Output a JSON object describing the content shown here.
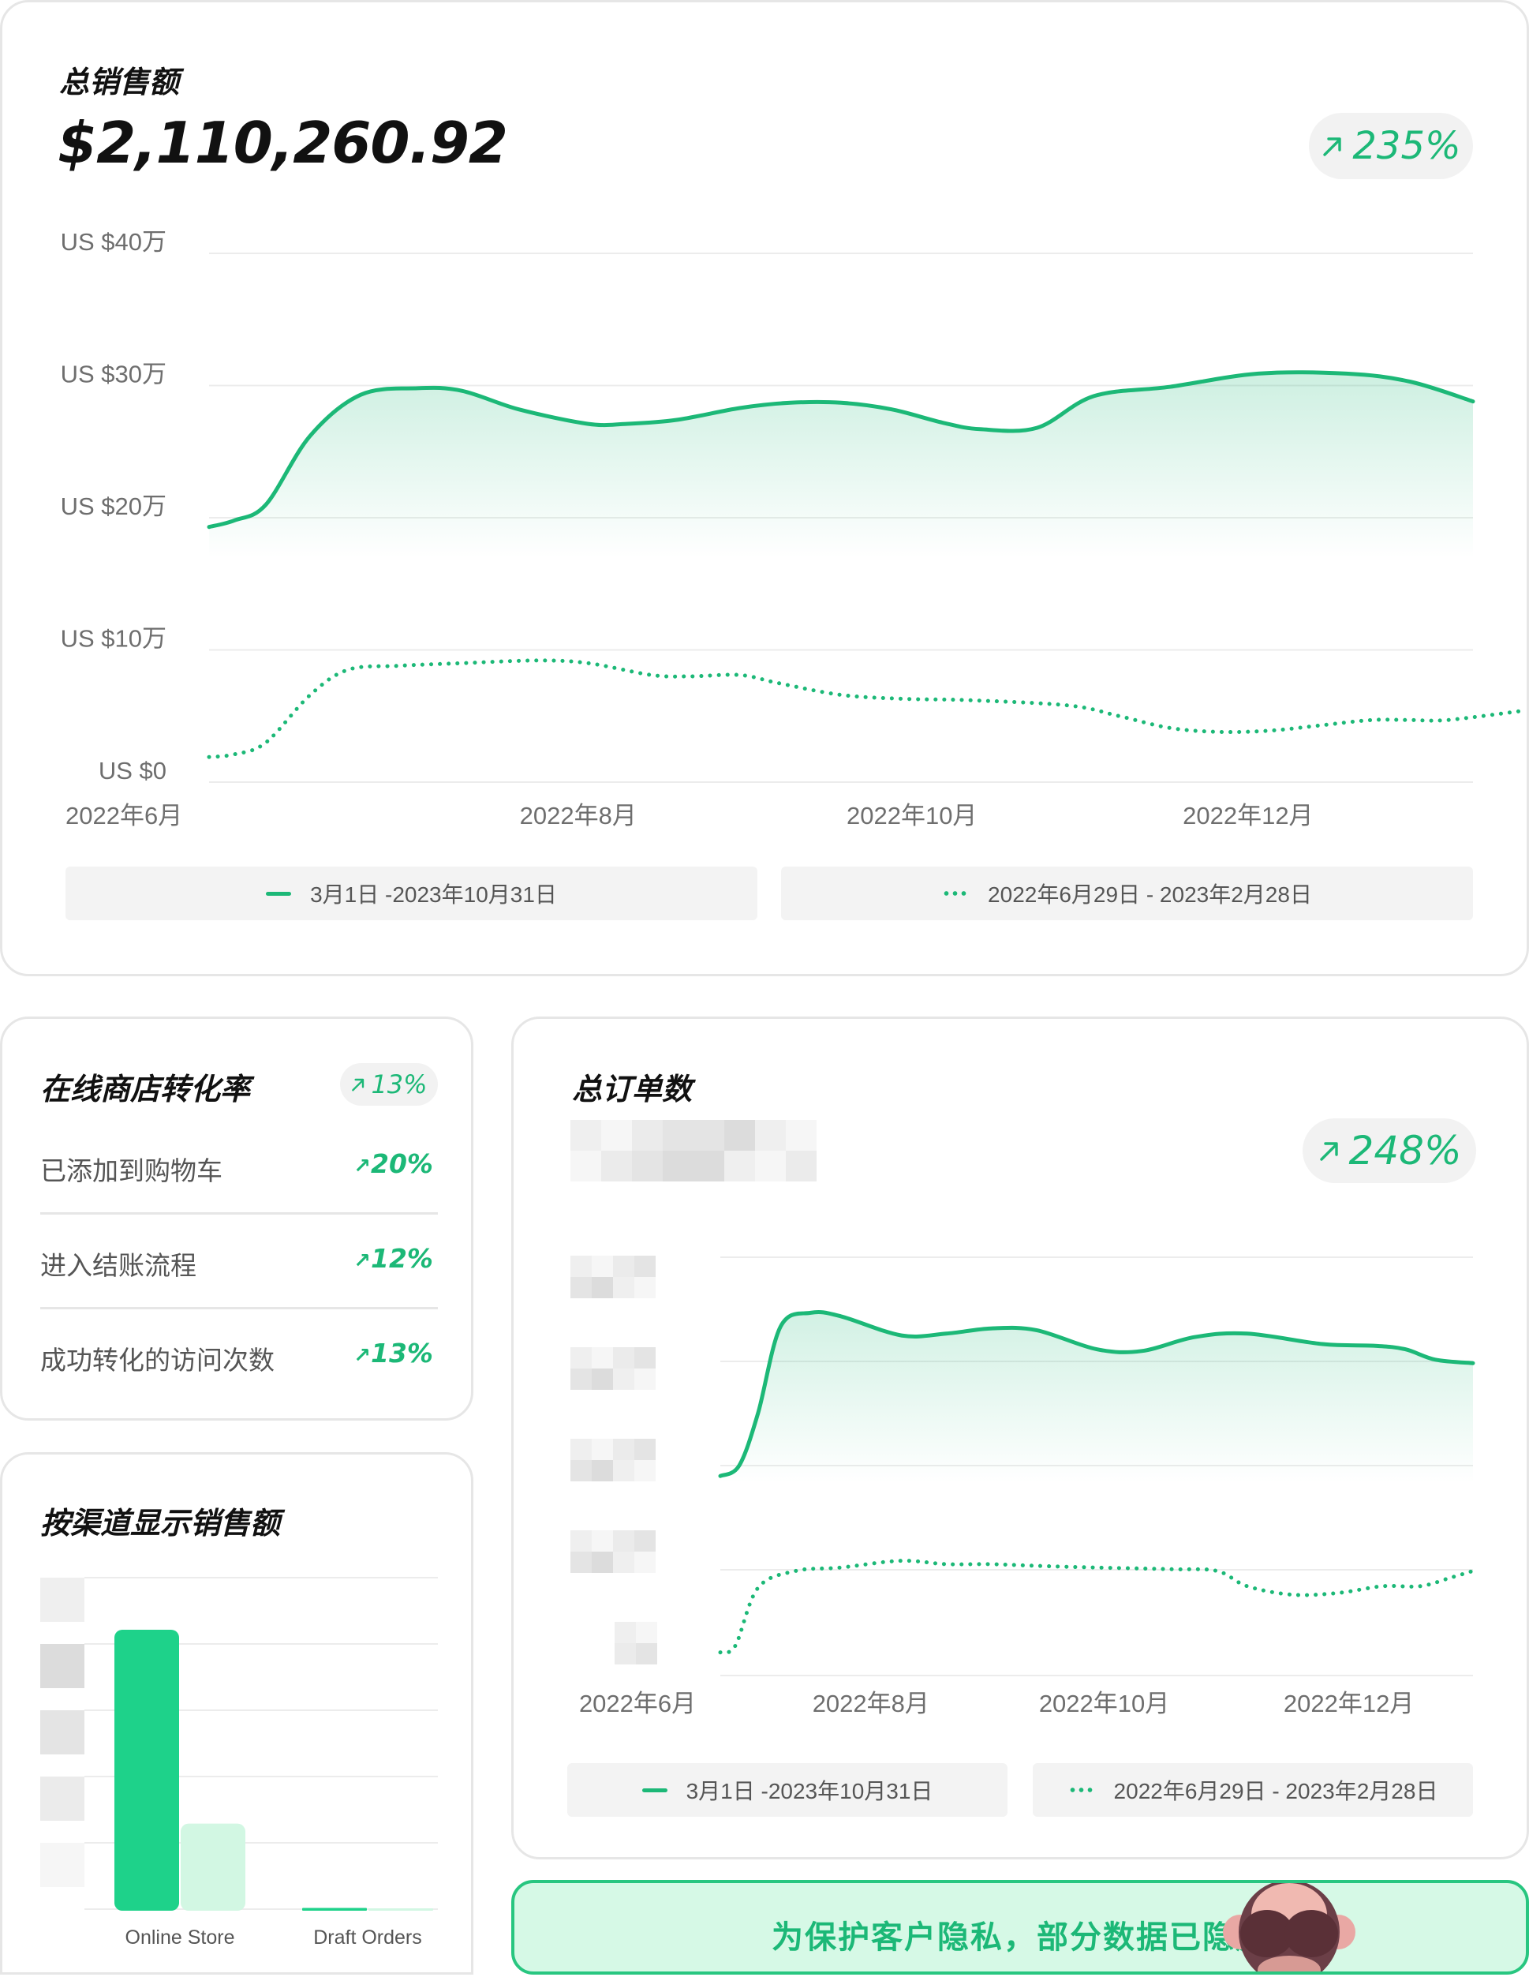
{
  "sales_card": {
    "title": "总销售额",
    "total": "$2,110,260.92",
    "change": "235%",
    "legend": {
      "current": "3月1日 -2023年10月31日",
      "previous": "2022年6月29日 - 2023年2月28日"
    }
  },
  "conversion_card": {
    "title": "在线商店转化率",
    "change": "13%",
    "rows": [
      {
        "label": "已添加到购物车",
        "value": "20%"
      },
      {
        "label": "进入结账流程",
        "value": "12%"
      },
      {
        "label": "成功转化的访问次数",
        "value": "13%"
      }
    ]
  },
  "channel_card": {
    "title": "按渠道显示销售额"
  },
  "orders_card": {
    "title": "总订单数",
    "change": "248%",
    "legend": {
      "current": "3月1日 -2023年10月31日",
      "previous": "2022年6月29日 - 2023年2月28日"
    }
  },
  "privacy_banner": {
    "text": "为保护客户隐私，部分数据已隐藏",
    "icon": "see-no-evil-monkey-icon"
  },
  "icons": {
    "trend": "arrow-up-right-icon"
  },
  "colors": {
    "accent": "#1cb877",
    "accent_light": "#d6f9e6",
    "bar_current": "#1ed28a",
    "bar_previous": "#d2f7e3"
  },
  "chart_data": [
    {
      "id": "sales",
      "type": "line",
      "y_ticks": [
        "US $0",
        "US $10万",
        "US $20万",
        "US $30万",
        "US $40万"
      ],
      "ylim": [
        0,
        400000
      ],
      "x_ticks": [
        {
          "label": "2022年6月",
          "at": 0
        },
        {
          "label": "2022年8月",
          "at": 0.292
        },
        {
          "label": "2022年10月",
          "at": 0.556
        },
        {
          "label": "2022年12月",
          "at": 0.822
        }
      ],
      "series": [
        {
          "style": "solid",
          "x": [
            0,
            0.02,
            0.045,
            0.08,
            0.12,
            0.165,
            0.2,
            0.245,
            0.3,
            0.33,
            0.37,
            0.42,
            0.46,
            0.5,
            0.54,
            0.58,
            0.61,
            0.655,
            0.7,
            0.76,
            0.83,
            0.9,
            0.95,
            1.0
          ],
          "values": [
            193000,
            198000,
            210000,
            262000,
            293000,
            298000,
            296000,
            282000,
            271000,
            271000,
            274000,
            283000,
            287000,
            287000,
            282000,
            272000,
            267000,
            268000,
            292000,
            299000,
            309000,
            309000,
            303000,
            288000
          ]
        },
        {
          "style": "dotted",
          "x": [
            0,
            0.02,
            0.045,
            0.08,
            0.11,
            0.15,
            0.2,
            0.26,
            0.3,
            0.35,
            0.38,
            0.42,
            0.45,
            0.5,
            0.55,
            0.6,
            0.68,
            0.72,
            0.76,
            0.8,
            0.84,
            0.88,
            0.92,
            0.95,
            0.98,
            1.04
          ],
          "values": [
            19000,
            21000,
            30000,
            66000,
            85000,
            88000,
            90000,
            92000,
            90000,
            81000,
            80000,
            81000,
            75000,
            66000,
            63000,
            62000,
            58000,
            50000,
            41000,
            38000,
            39000,
            43000,
            47000,
            47000,
            47000,
            54000
          ]
        }
      ]
    },
    {
      "id": "orders",
      "type": "line",
      "x_ticks": [
        {
          "label": "2022年6月",
          "at": -0.11
        },
        {
          "label": "2022年8月",
          "at": 0.2
        },
        {
          "label": "2022年10月",
          "at": 0.51
        },
        {
          "label": "2022年12月",
          "at": 0.835
        }
      ],
      "series": [
        {
          "style": "solid",
          "x": [
            0,
            0.025,
            0.05,
            0.08,
            0.12,
            0.16,
            0.24,
            0.3,
            0.36,
            0.42,
            0.5,
            0.56,
            0.63,
            0.7,
            0.8,
            0.87,
            0.91,
            0.95,
            1.0
          ],
          "values": [
            0.04,
            0.1,
            0.4,
            0.9,
            0.98,
            0.96,
            0.85,
            0.86,
            0.89,
            0.88,
            0.77,
            0.76,
            0.84,
            0.86,
            0.8,
            0.79,
            0.77,
            0.71,
            0.69
          ]
        },
        {
          "style": "dotted",
          "x": [
            0,
            0.02,
            0.05,
            0.1,
            0.16,
            0.24,
            0.3,
            0.36,
            0.42,
            0.5,
            0.6,
            0.66,
            0.7,
            0.76,
            0.82,
            0.88,
            0.93,
            0.97,
            1.0
          ],
          "values": [
            0.02,
            0.06,
            0.4,
            0.5,
            0.52,
            0.56,
            0.54,
            0.54,
            0.53,
            0.52,
            0.51,
            0.5,
            0.41,
            0.36,
            0.37,
            0.41,
            0.41,
            0.46,
            0.5
          ]
        }
      ]
    },
    {
      "id": "channels",
      "type": "bar",
      "categories": [
        "Online Store",
        "Draft Orders"
      ],
      "series": [
        {
          "values": [
            1.0,
            0.01
          ]
        },
        {
          "values": [
            0.31,
            0.005
          ]
        }
      ]
    }
  ]
}
